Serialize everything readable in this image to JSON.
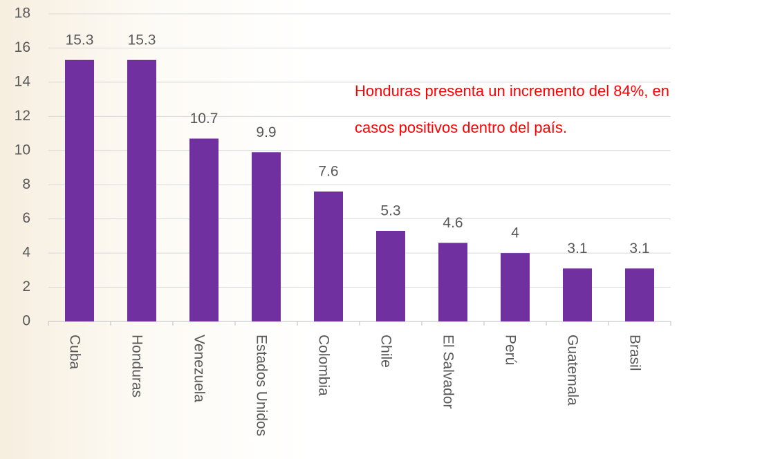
{
  "chart_data": {
    "type": "bar",
    "categories": [
      "Cuba",
      "Honduras",
      "Venezuela",
      "Estados Unidos",
      "Colombia",
      "Chile",
      "El Salvador",
      "Perú",
      "Guatemala",
      "Brasil"
    ],
    "values": [
      15.3,
      15.3,
      10.7,
      9.9,
      7.6,
      5.3,
      4.6,
      4,
      3.1,
      3.1
    ],
    "color": "#7030a0",
    "ylim": [
      0,
      18
    ],
    "yticks": [
      0,
      2,
      4,
      6,
      8,
      10,
      12,
      14,
      16,
      18
    ],
    "grid": true,
    "annotation": [
      "Honduras presenta un incremento del 84%, en",
      "casos positivos dentro del país."
    ]
  }
}
